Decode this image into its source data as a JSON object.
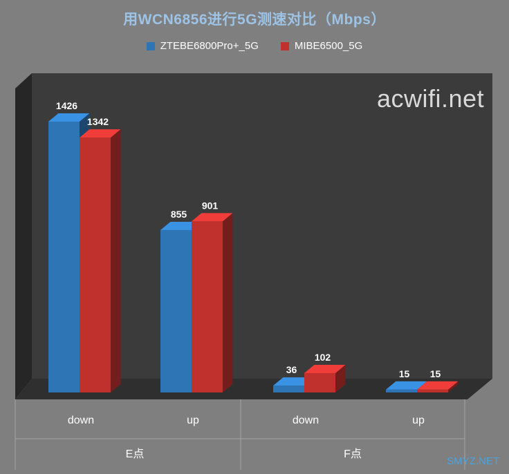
{
  "chart_data": {
    "type": "bar",
    "title": "用WCN6856进行5G测速对比（Mbps）",
    "categories": [
      "down",
      "up",
      "down",
      "up"
    ],
    "groups": [
      {
        "label": "E点",
        "span": [
          0,
          1
        ]
      },
      {
        "label": "F点",
        "span": [
          2,
          3
        ]
      }
    ],
    "series": [
      {
        "name": "ZTEBE6800Pro+_5G",
        "values": [
          1426,
          855,
          36,
          15
        ],
        "color": "#2e75b6"
      },
      {
        "name": "MIBE6500_5G",
        "values": [
          1342,
          901,
          102,
          15
        ],
        "color": "#c0312e"
      }
    ],
    "ylim": [
      0,
      1426
    ],
    "grid": false,
    "legend_position": "top"
  },
  "watermark": "acwifi.net",
  "credit": "SMYZ.NET"
}
